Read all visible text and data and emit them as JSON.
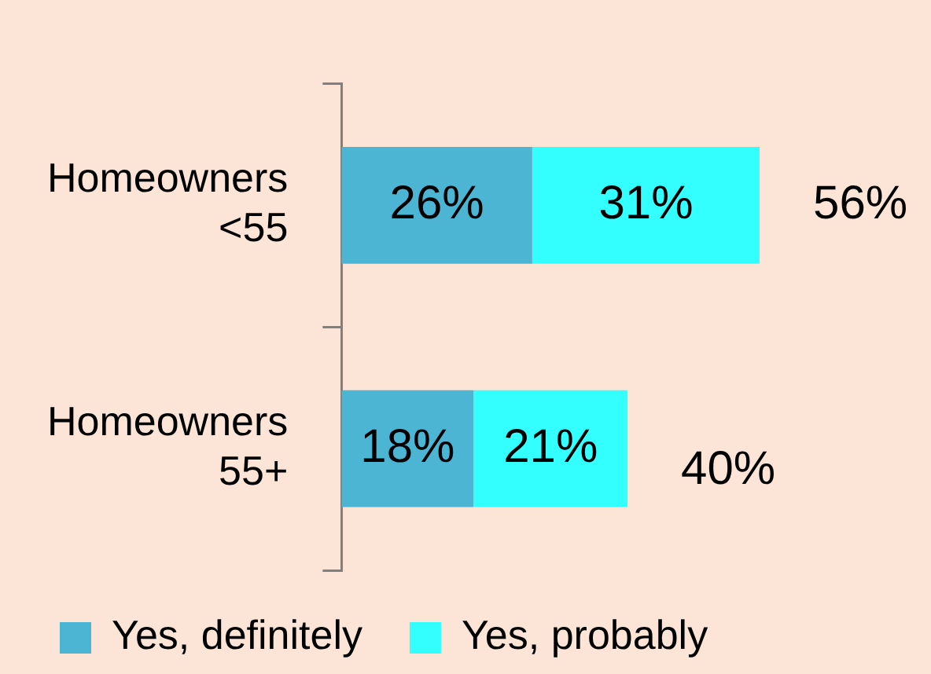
{
  "chart_data": {
    "type": "bar",
    "orientation": "horizontal",
    "stacked": true,
    "categories": [
      "Homeowners <55",
      "Homeowners 55+"
    ],
    "series": [
      {
        "name": "Yes, definitely",
        "color": "#4bb5d3",
        "values": [
          26,
          18
        ],
        "value_labels": [
          "26%",
          "18%"
        ]
      },
      {
        "name": "Yes, probably",
        "color": "#33ffff",
        "values": [
          31,
          21
        ],
        "value_labels": [
          "31%",
          "21%"
        ]
      }
    ],
    "totals": [
      "56%",
      "40%"
    ],
    "tick_labels": "y",
    "legend": "bottom left"
  }
}
